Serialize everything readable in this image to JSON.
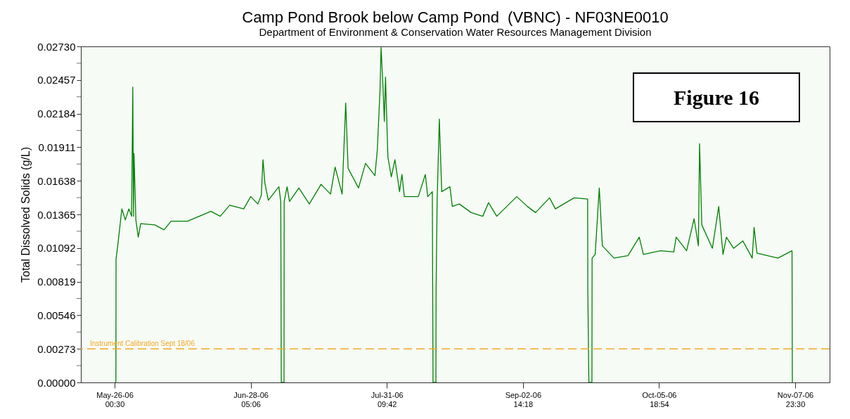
{
  "chart_data": {
    "type": "line",
    "title": "Camp Pond Brook below Camp Pond  (VBNC) - NF03NE0010",
    "subtitle": "Department of Environment & Conservation Water Resources Management Division",
    "ylabel": "Total Dissolved Solids (g/L)",
    "annotations": [
      "Figure 16"
    ],
    "x": [
      "2006-05-26T08:00",
      "2006-05-26T09:00",
      "2006-05-26T22:00",
      "2006-05-27T19:00",
      "2006-05-28T15:00",
      "2006-05-29T12:00",
      "2006-05-30T04:00",
      "2006-05-30T11:00",
      "2006-05-30T15:00",
      "2006-05-30T18:00",
      "2006-05-31T05:00",
      "2006-05-31T19:00",
      "2006-06-01T09:00",
      "2006-06-04T19:00",
      "2006-06-07T02:00",
      "2006-06-08T19:00",
      "2006-06-12T19:00",
      "2006-06-15T16:00",
      "2006-06-18T12:00",
      "2006-06-20T19:00",
      "2006-06-23T02:00",
      "2006-06-26T12:00",
      "2006-06-28T05:00",
      "2006-06-29T23:00",
      "2006-06-30T19:00",
      "2006-07-01T05:00",
      "2006-07-01T16:00",
      "2006-07-02T12:00",
      "2006-07-05T02:00",
      "2006-07-05T13:00",
      "2006-07-05T16:00",
      "2006-07-06T08:00",
      "2006-07-06T09:00",
      "2006-07-07T02:00",
      "2006-07-07T16:00",
      "2006-07-09T23:00",
      "2006-07-12T12:00",
      "2006-07-15T09:00",
      "2006-07-17T16:00",
      "2006-07-18T19:00",
      "2006-07-20T12:00",
      "2006-07-21T09:00",
      "2006-07-21T23:00",
      "2006-07-24T12:00",
      "2006-07-26T05:00",
      "2006-07-28T12:00",
      "2006-07-29T02:00",
      "2006-07-29T18:00",
      "2006-07-30T00:00",
      "2006-07-30T12:00",
      "2006-07-30T19:00",
      "2006-07-31T02:00",
      "2006-07-31T16:00",
      "2006-08-01T12:00",
      "2006-08-02T09:00",
      "2006-08-03T12:00",
      "2006-08-04T02:00",
      "2006-08-04T16:00",
      "2006-08-08T02:00",
      "2006-08-09T19:00",
      "2006-08-10T09:00",
      "2006-08-11T12:00",
      "2006-08-11T16:00",
      "2006-08-12T09:00",
      "2006-08-12T10:00",
      "2006-08-12T16:00",
      "2006-08-13T05:00",
      "2006-08-13T19:00",
      "2006-08-15T19:00",
      "2006-08-16T09:00",
      "2006-08-18T02:00",
      "2006-08-20T23:00",
      "2006-08-23T19:00",
      "2006-08-25T05:00",
      "2006-08-27T05:00",
      "2006-09-01T02:00",
      "2006-09-03T16:00",
      "2006-09-05T16:00",
      "2006-09-09T02:00",
      "2006-09-10T12:00",
      "2006-09-15T02:00",
      "2006-09-18T09:00",
      "2006-09-18T10:00",
      "2006-09-18T16:00",
      "2006-09-19T10:00",
      "2006-09-19T11:00",
      "2006-09-20T05:00",
      "2006-09-21T05:00",
      "2006-09-21T23:00",
      "2006-09-24T19:00",
      "2006-09-28T05:00",
      "2006-09-30T23:00",
      "2006-10-01T23:00",
      "2006-10-06T05:00",
      "2006-10-09T09:00",
      "2006-10-09T23:00",
      "2006-10-12T12:00",
      "2006-10-14T08:00",
      "2006-10-15T09:00",
      "2006-10-15T16:00",
      "2006-10-16T05:00",
      "2006-10-18T19:00",
      "2006-10-20T08:00",
      "2006-10-21T09:00",
      "2006-10-22T05:00",
      "2006-10-23T23:00",
      "2006-10-26T05:00",
      "2006-10-28T12:00",
      "2006-10-28T23:00",
      "2006-10-29T16:00",
      "2006-11-03T19:00",
      "2006-11-07T05:00",
      "2006-11-07T07:00"
    ],
    "series": [
      {
        "color": "#008000",
        "values": [
          0,
          0.01,
          0.0115,
          0.0141,
          0.0132,
          0.0141,
          0.0135,
          0.024,
          0.0135,
          0.0186,
          0.0132,
          0.0118,
          0.0129,
          0.0128,
          0.0124,
          0.0131,
          0.0131,
          0.0135,
          0.0139,
          0.0135,
          0.0144,
          0.0141,
          0.0151,
          0.0145,
          0.0152,
          0.0181,
          0.0162,
          0.0148,
          0.0159,
          0.0147,
          0,
          0,
          0.0147,
          0.0159,
          0.0147,
          0.0158,
          0.0145,
          0.0161,
          0.0153,
          0.0175,
          0.0153,
          0.0227,
          0.0174,
          0.0158,
          0.0178,
          0.0168,
          0.0189,
          0.0238,
          0.0272,
          0.0238,
          0.0212,
          0.0248,
          0.0183,
          0.0167,
          0.0181,
          0.0155,
          0.0169,
          0.0151,
          0.0151,
          0.0169,
          0.0151,
          0.0155,
          0,
          0,
          0.0075,
          0.0147,
          0.0214,
          0.0155,
          0.0159,
          0.0143,
          0.0145,
          0.0138,
          0.0135,
          0.0146,
          0.0135,
          0.0151,
          0.0143,
          0.0138,
          0.015,
          0.0141,
          0.015,
          0.0149,
          0.0074,
          0,
          0,
          0.0101,
          0.0104,
          0.0158,
          0.0111,
          0.0101,
          0.0103,
          0.0118,
          0.0104,
          0.0107,
          0.0106,
          0.0118,
          0.0107,
          0.0133,
          0.0111,
          0.0194,
          0.0128,
          0.0109,
          0.0143,
          0.0104,
          0.0118,
          0.0109,
          0.0115,
          0.0101,
          0.0126,
          0.0105,
          0.0101,
          0.0107,
          0
        ]
      }
    ],
    "xlim": [
      "2006-05-17T19:00",
      "2006-11-16T09:00"
    ],
    "xticks": [
      {
        "value": "2006-05-26T00:30",
        "label": "May-26-06\n00:30"
      },
      {
        "value": "2006-06-28T05:06",
        "label": "Jun-28-06\n05:06"
      },
      {
        "value": "2006-07-31T09:42",
        "label": "Jul-31-06\n09:42"
      },
      {
        "value": "2006-09-02T14:18",
        "label": "Sep-02-06\n14:18"
      },
      {
        "value": "2006-10-05T18:54",
        "label": "Oct-05-06\n18:54"
      },
      {
        "value": "2006-11-07T23:30",
        "label": "Nov-07-06\n23:30"
      }
    ],
    "ylim": [
      0,
      0.0273
    ],
    "yticks": [
      {
        "value": 0,
        "label": "0.00000"
      },
      {
        "value": 0.001365,
        "label": null
      },
      {
        "value": 0.00273,
        "label": "0.00273"
      },
      {
        "value": 0.004095,
        "label": null
      },
      {
        "value": 0.00546,
        "label": "0.00546"
      },
      {
        "value": 0.006825,
        "label": null
      },
      {
        "value": 0.00819,
        "label": "0.00819"
      },
      {
        "value": 0.009555,
        "label": null
      },
      {
        "value": 0.01092,
        "label": "0.01092"
      },
      {
        "value": 0.012285,
        "label": null
      },
      {
        "value": 0.01365,
        "label": "0.01365"
      },
      {
        "value": 0.015015,
        "label": null
      },
      {
        "value": 0.01638,
        "label": "0.01638"
      },
      {
        "value": 0.017745,
        "label": null
      },
      {
        "value": 0.01911,
        "label": "0.01911"
      },
      {
        "value": 0.020475,
        "label": null
      },
      {
        "value": 0.02184,
        "label": "0.02184"
      },
      {
        "value": 0.023205,
        "label": null
      },
      {
        "value": 0.02457,
        "label": "0.02457"
      },
      {
        "value": 0.025935,
        "label": null
      },
      {
        "value": 0.0273,
        "label": "0.02730"
      }
    ],
    "ref_lines": [
      {
        "axis": "y",
        "value": 0.00273,
        "label": "Instrument Calibration Sept 18/06",
        "color": "#f5a623",
        "line_style": "dashed"
      }
    ],
    "grid": false
  }
}
